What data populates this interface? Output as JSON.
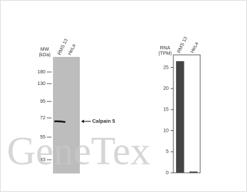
{
  "western_blot": {
    "mw_label": "MW",
    "mw_unit": "(kDa)",
    "lanes": [
      "RMS 13",
      "HeLa"
    ],
    "markers": [
      180,
      130,
      95,
      72,
      55,
      43
    ],
    "band_label": "Calpain 5"
  },
  "chart_data": {
    "type": "bar",
    "y_label": "RNA",
    "y_unit": "(TPM)",
    "categories": [
      "RMS 13",
      "HeLa"
    ],
    "values": [
      26.5,
      0.3
    ],
    "color": "#444444",
    "ylim": [
      0,
      28
    ],
    "yticks": [
      0,
      5,
      10,
      15,
      20,
      25
    ]
  },
  "watermark": "GeneTex"
}
